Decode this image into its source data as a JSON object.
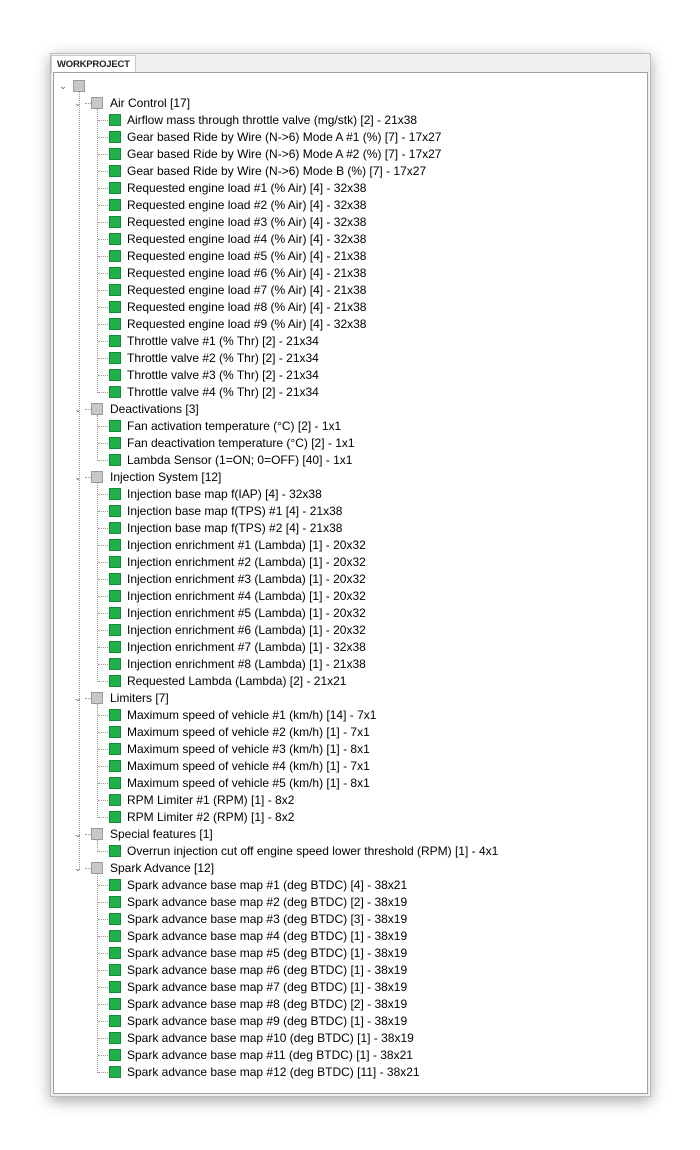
{
  "tab": {
    "label": "WORKPROJECT"
  },
  "colors": {
    "leaf": "#1fb04a",
    "group": "#c8c8c8"
  },
  "tree": {
    "root_label": "",
    "groups": [
      {
        "label": "Air Control [17]",
        "expanded": true,
        "items": [
          "Airflow mass through throttle valve (mg/stk) [2] - 21x38",
          "Gear based Ride by Wire (N->6) Mode A #1 (%) [7] - 17x27",
          "Gear based Ride by Wire (N->6) Mode A #2 (%) [7] - 17x27",
          "Gear based Ride by Wire (N->6) Mode B (%) [7] - 17x27",
          "Requested engine load #1 (% Air) [4] - 32x38",
          "Requested engine load #2 (% Air) [4] - 32x38",
          "Requested engine load #3 (% Air) [4] - 32x38",
          "Requested engine load #4 (% Air) [4] - 32x38",
          "Requested engine load #5 (% Air) [4] - 21x38",
          "Requested engine load #6 (% Air) [4] - 21x38",
          "Requested engine load #7 (% Air) [4] - 21x38",
          "Requested engine load #8 (% Air) [4] - 21x38",
          "Requested engine load #9 (% Air) [4] - 32x38",
          "Throttle valve #1 (% Thr) [2] - 21x34",
          "Throttle valve #2 (% Thr) [2] - 21x34",
          "Throttle valve #3 (% Thr) [2] - 21x34",
          "Throttle valve #4 (% Thr) [2] - 21x34"
        ]
      },
      {
        "label": "Deactivations [3]",
        "expanded": true,
        "items": [
          "Fan activation temperature (°C) [2] - 1x1",
          "Fan deactivation temperature (°C) [2] - 1x1",
          "Lambda Sensor (1=ON; 0=OFF) [40] - 1x1"
        ]
      },
      {
        "label": "Injection System [12]",
        "expanded": true,
        "items": [
          "Injection base map f(IAP) [4] - 32x38",
          "Injection base map f(TPS) #1 [4] - 21x38",
          "Injection base map f(TPS) #2 [4] - 21x38",
          "Injection enrichment #1 (Lambda) [1] - 20x32",
          "Injection enrichment #2 (Lambda) [1] - 20x32",
          "Injection enrichment #3 (Lambda) [1] - 20x32",
          "Injection enrichment #4 (Lambda) [1] - 20x32",
          "Injection enrichment #5 (Lambda) [1] - 20x32",
          "Injection enrichment #6 (Lambda) [1] - 20x32",
          "Injection enrichment #7 (Lambda) [1] - 32x38",
          "Injection enrichment #8 (Lambda) [1] - 21x38",
          "Requested Lambda (Lambda) [2] - 21x21"
        ]
      },
      {
        "label": "Limiters [7]",
        "expanded": true,
        "items": [
          "Maximum speed of vehicle #1 (km/h) [14] - 7x1",
          "Maximum speed of vehicle #2 (km/h) [1] - 7x1",
          "Maximum speed of vehicle #3 (km/h) [1] - 8x1",
          "Maximum speed of vehicle #4 (km/h) [1] - 7x1",
          "Maximum speed of vehicle #5 (km/h) [1] - 8x1",
          "RPM Limiter #1 (RPM) [1] - 8x2",
          "RPM Limiter #2 (RPM) [1] - 8x2"
        ]
      },
      {
        "label": "Special features [1]",
        "expanded": true,
        "items": [
          "Overrun injection cut off engine speed lower threshold (RPM) [1] - 4x1"
        ]
      },
      {
        "label": "Spark Advance [12]",
        "expanded": true,
        "items": [
          "Spark advance base map #1 (deg BTDC) [4] - 38x21",
          "Spark advance base map #2 (deg BTDC) [2] - 38x19",
          "Spark advance base map #3 (deg BTDC) [3] - 38x19",
          "Spark advance base map #4 (deg BTDC) [1] - 38x19",
          "Spark advance base map #5 (deg BTDC) [1] - 38x19",
          "Spark advance base map #6 (deg BTDC) [1] - 38x19",
          "Spark advance base map #7 (deg BTDC) [1] - 38x19",
          "Spark advance base map #8 (deg BTDC) [2] - 38x19",
          "Spark advance base map #9 (deg BTDC) [1] - 38x19",
          "Spark advance base map #10 (deg BTDC) [1] - 38x19",
          "Spark advance base map #11 (deg BTDC) [1] - 38x21",
          "Spark advance base map #12 (deg BTDC) [11] - 38x21"
        ]
      }
    ]
  }
}
